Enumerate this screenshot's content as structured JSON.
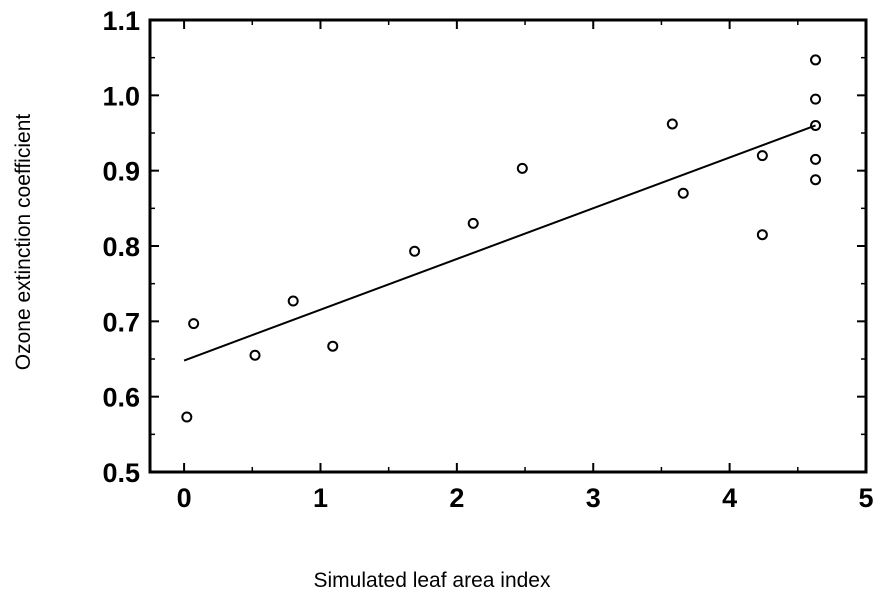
{
  "chart_data": {
    "type": "scatter",
    "title": "",
    "xlabel": "Simulated leaf area index",
    "ylabel": "Ozone extinction coefficient",
    "xlim": [
      -0.25,
      5
    ],
    "ylim": [
      0.5,
      1.1
    ],
    "x_ticks": [
      0,
      1,
      2,
      3,
      4,
      5
    ],
    "x_tick_labels": [
      "0",
      "1",
      "2",
      "3",
      "4",
      "5"
    ],
    "y_ticks": [
      0.5,
      0.6,
      0.7,
      0.8,
      0.9,
      1.0,
      1.1
    ],
    "y_tick_labels": [
      "0.5",
      "0.6",
      "0.7",
      "0.8",
      "0.9",
      "1.0",
      "1.1"
    ],
    "grid": false,
    "series": [
      {
        "marker": "open-circle",
        "points": [
          {
            "x": 0.02,
            "y": 0.573
          },
          {
            "x": 0.07,
            "y": 0.697
          },
          {
            "x": 0.52,
            "y": 0.655
          },
          {
            "x": 0.8,
            "y": 0.727
          },
          {
            "x": 1.09,
            "y": 0.667
          },
          {
            "x": 1.69,
            "y": 0.793
          },
          {
            "x": 2.12,
            "y": 0.83
          },
          {
            "x": 2.48,
            "y": 0.903
          },
          {
            "x": 3.58,
            "y": 0.962
          },
          {
            "x": 3.66,
            "y": 0.87
          },
          {
            "x": 4.24,
            "y": 0.92
          },
          {
            "x": 4.24,
            "y": 0.815
          },
          {
            "x": 4.63,
            "y": 1.047
          },
          {
            "x": 4.63,
            "y": 0.995
          },
          {
            "x": 4.63,
            "y": 0.96
          },
          {
            "x": 4.63,
            "y": 0.915
          },
          {
            "x": 4.63,
            "y": 0.888
          }
        ]
      }
    ],
    "fit_line": {
      "x": [
        0.0,
        4.63
      ],
      "y": [
        0.648,
        0.96
      ]
    }
  }
}
